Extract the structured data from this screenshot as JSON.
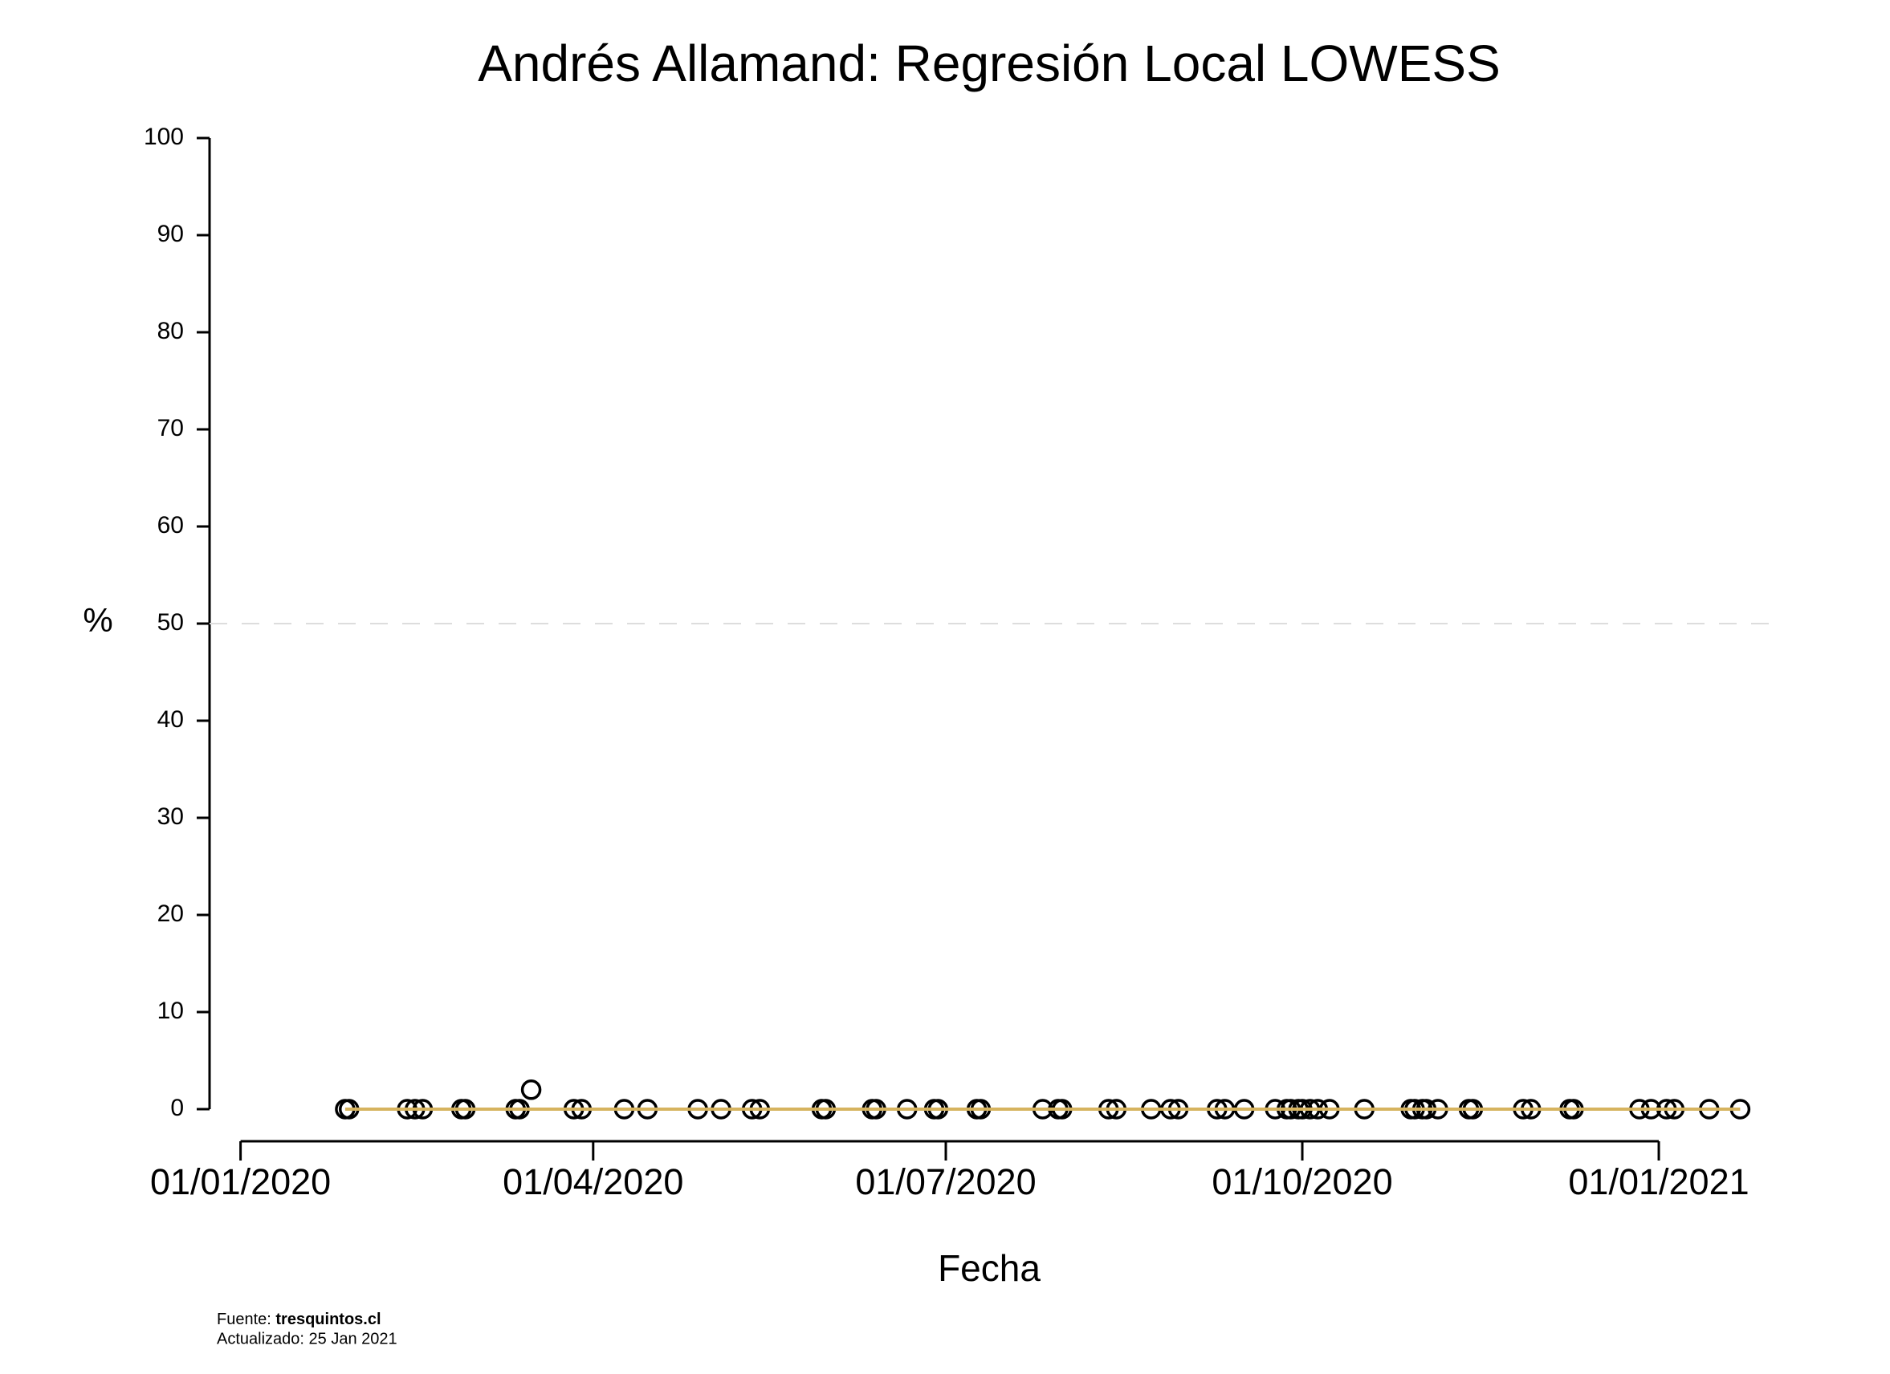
{
  "chart_data": {
    "type": "scatter",
    "title": "Andrés Allamand: Regresión Local LOWESS",
    "x_label": "Fecha",
    "y_label": "%",
    "x": [
      "2020-01-28",
      "2020-01-29",
      "2020-02-13",
      "2020-02-15",
      "2020-02-17",
      "2020-02-27",
      "2020-02-28",
      "2020-03-12",
      "2020-03-13",
      "2020-03-16",
      "2020-03-27",
      "2020-03-29",
      "2020-04-09",
      "2020-04-15",
      "2020-04-28",
      "2020-05-04",
      "2020-05-12",
      "2020-05-14",
      "2020-05-30",
      "2020-05-31",
      "2020-06-12",
      "2020-06-13",
      "2020-06-21",
      "2020-06-28",
      "2020-06-29",
      "2020-07-09",
      "2020-07-10",
      "2020-07-26",
      "2020-07-30",
      "2020-07-31",
      "2020-08-12",
      "2020-08-14",
      "2020-08-23",
      "2020-08-28",
      "2020-08-30",
      "2020-09-09",
      "2020-09-11",
      "2020-09-16",
      "2020-09-24",
      "2020-09-27",
      "2020-09-28",
      "2020-09-30",
      "2020-10-01",
      "2020-10-03",
      "2020-10-05",
      "2020-10-08",
      "2020-10-17",
      "2020-10-29",
      "2020-10-30",
      "2020-11-01",
      "2020-11-02",
      "2020-11-05",
      "2020-11-13",
      "2020-11-14",
      "2020-11-27",
      "2020-11-29",
      "2020-12-09",
      "2020-12-10",
      "2020-12-27",
      "2020-12-30",
      "2021-01-03",
      "2021-01-05",
      "2021-01-14",
      "2021-01-22"
    ],
    "values": [
      0,
      0,
      0,
      0,
      0,
      0,
      0,
      0,
      0,
      2,
      0,
      0,
      0,
      0,
      0,
      0,
      0,
      0,
      0,
      0,
      0,
      0,
      0,
      0,
      0,
      0,
      0,
      0,
      0,
      0,
      0,
      0,
      0,
      0,
      0,
      0,
      0,
      0,
      0,
      0,
      0,
      0,
      0,
      0,
      0,
      0,
      0,
      0,
      0,
      0,
      0,
      0,
      0,
      0,
      0,
      0,
      0,
      0,
      0,
      0,
      0,
      0,
      0,
      0
    ],
    "color": "#000000",
    "lowess": {
      "x": [
        "2020-01-28",
        "2021-01-22"
      ],
      "values": [
        0,
        0
      ],
      "color": "#d6b35e"
    },
    "reference_line": 50,
    "xlim": [
      "2019-12-24",
      "2021-01-30"
    ],
    "xticks": [
      {
        "value": "2020-01-01",
        "label": "01/01/2020"
      },
      {
        "value": "2020-04-01",
        "label": "01/04/2020"
      },
      {
        "value": "2020-07-01",
        "label": "01/07/2020"
      },
      {
        "value": "2020-10-01",
        "label": "01/10/2020"
      },
      {
        "value": "2021-01-01",
        "label": "01/01/2021"
      }
    ],
    "ylim": [
      0,
      100
    ],
    "yticks": [
      0,
      10,
      20,
      30,
      40,
      50,
      60,
      70,
      80,
      90,
      100
    ],
    "footer": {
      "source_label": "Fuente:",
      "source": "tresquintos.cl",
      "updated": "Actualizado: 25 Jan 2021"
    }
  }
}
